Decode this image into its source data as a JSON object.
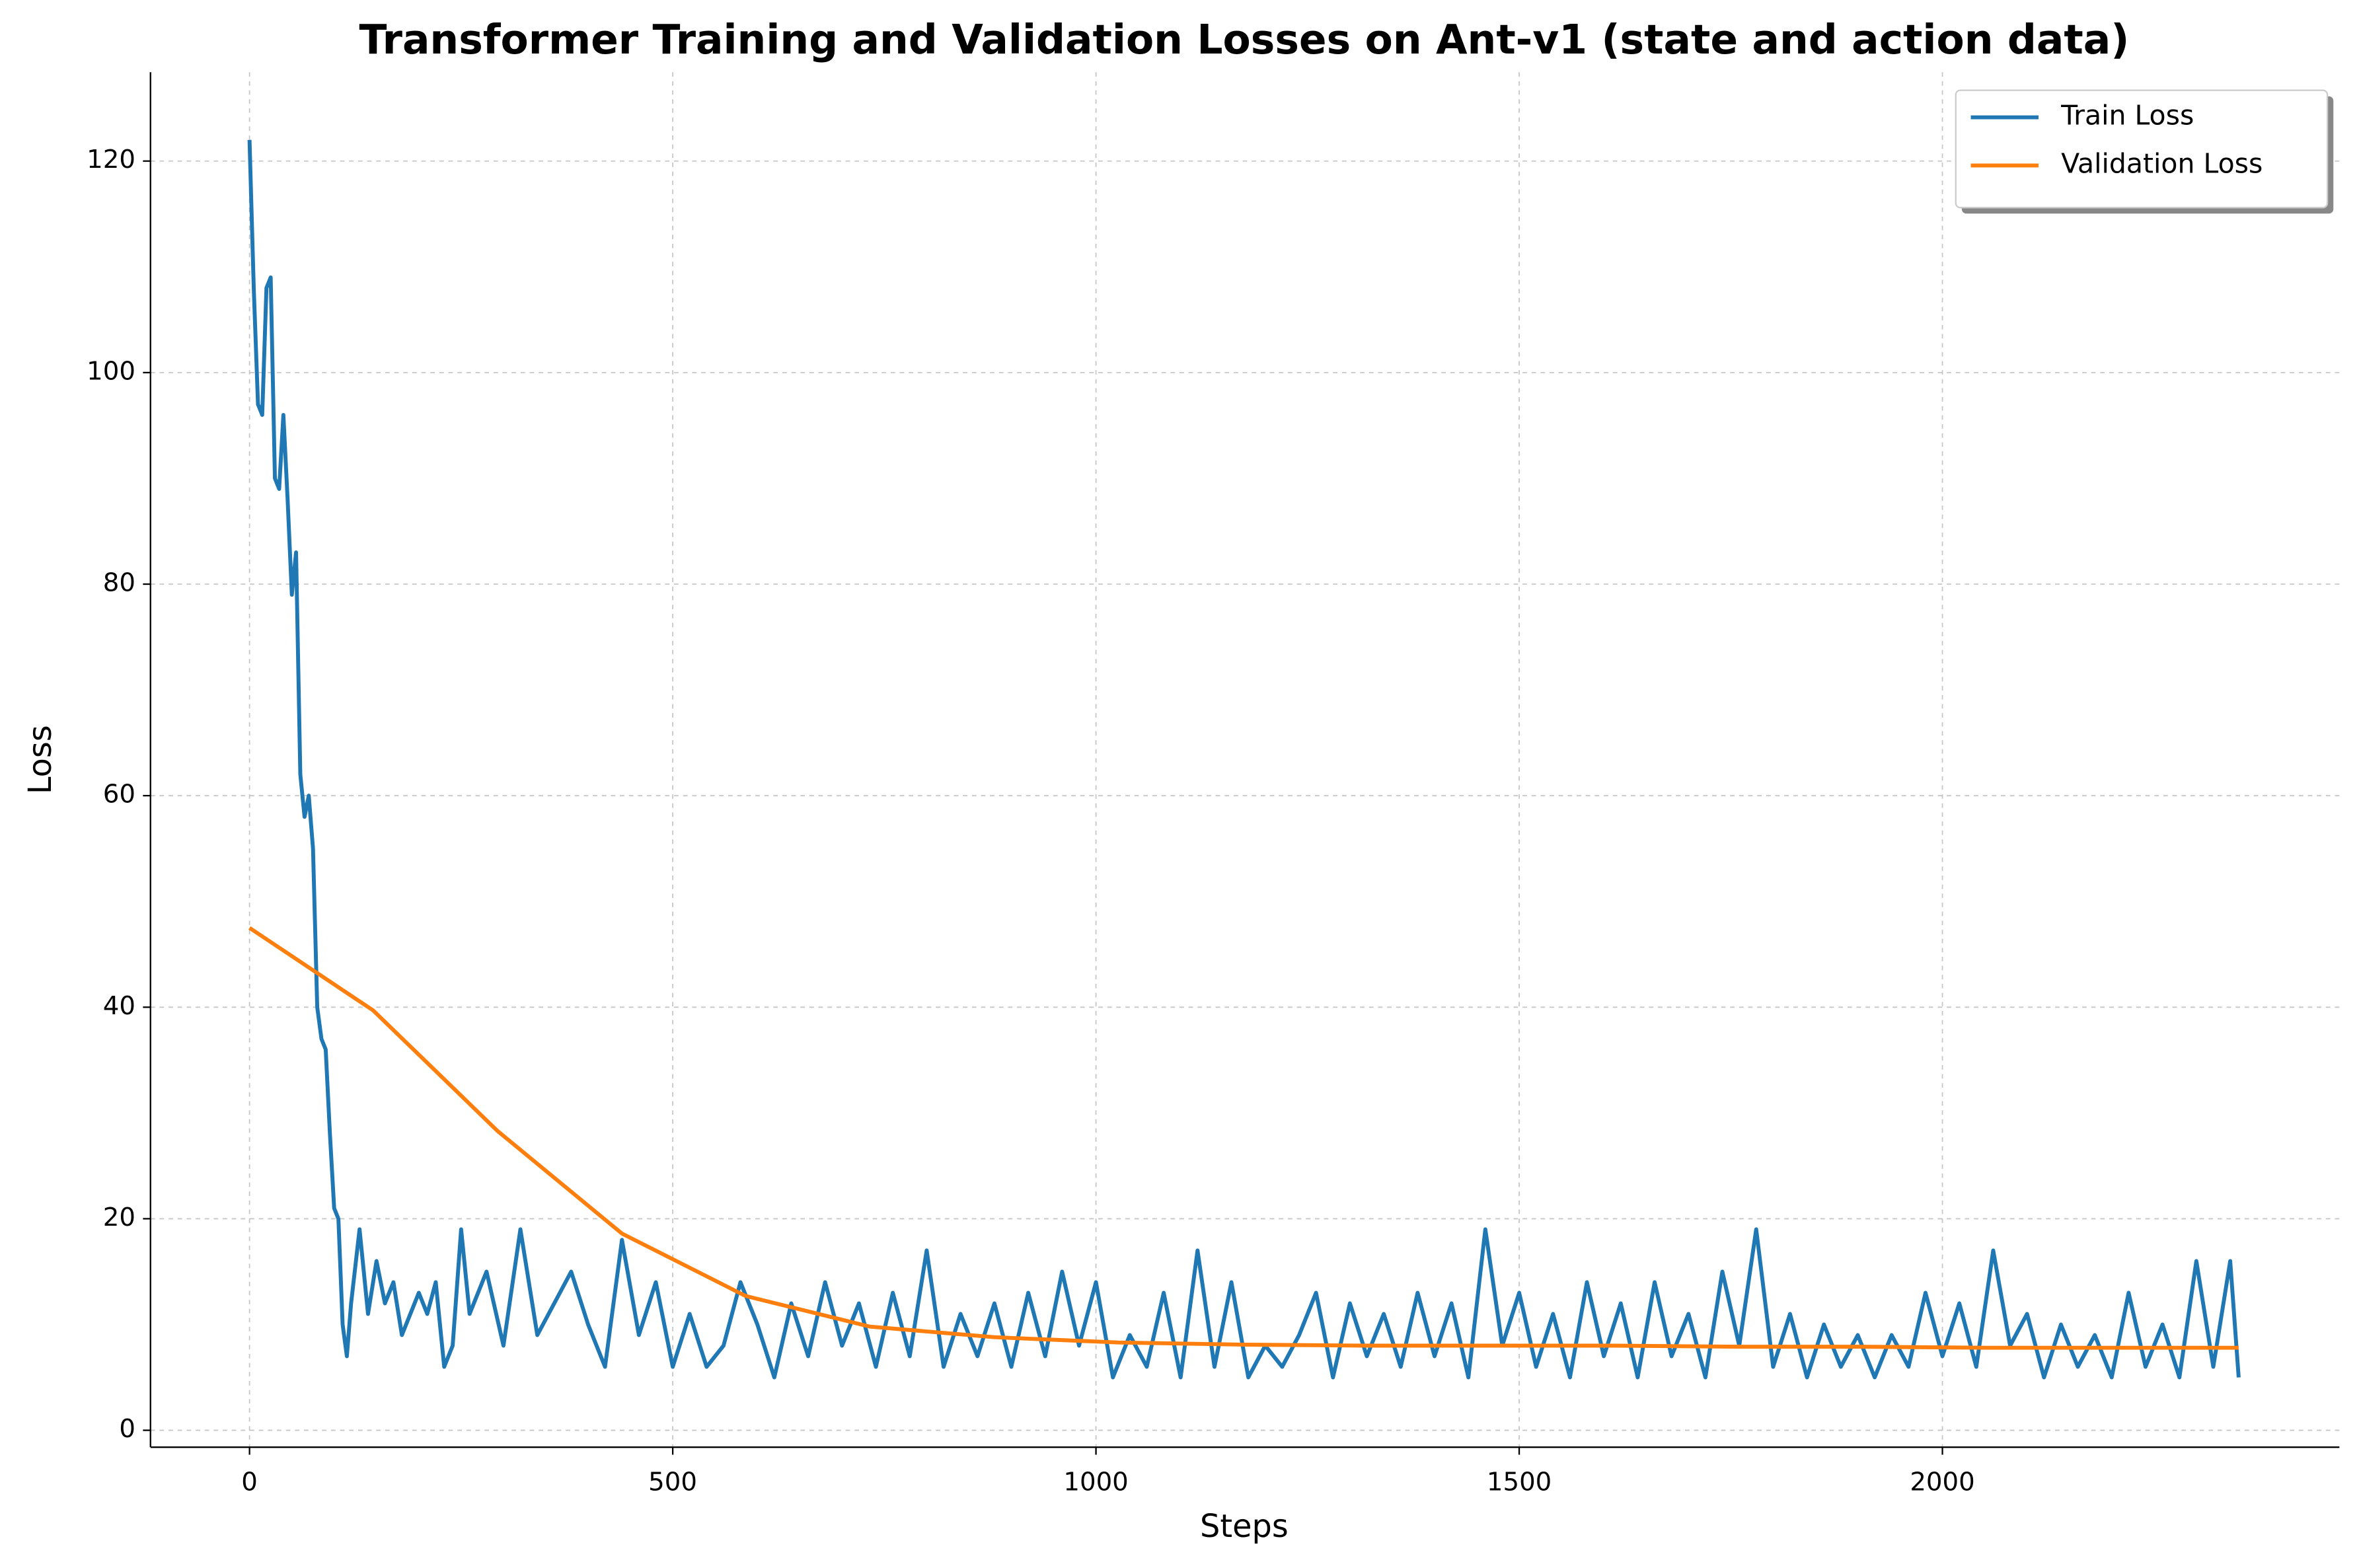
{
  "chart_data": {
    "type": "line",
    "title": "Transformer Training and Validation Losses on Ant-v1 (state and action data)",
    "x_label": "Steps",
    "y_label": "Loss",
    "xlim": [
      -117,
      2469
    ],
    "ylim": [
      -1.6,
      128.4
    ],
    "xticks": [
      0,
      500,
      1000,
      1500,
      2000
    ],
    "yticks": [
      0,
      20,
      40,
      60,
      80,
      100,
      120
    ],
    "grid": true,
    "legend": "upper right",
    "series": [
      {
        "name": "Train Loss",
        "color": "#1f77b4",
        "x": [
          0,
          5,
          10,
          15,
          20,
          25,
          30,
          35,
          40,
          45,
          50,
          55,
          60,
          65,
          70,
          75,
          80,
          85,
          90,
          95,
          100,
          105,
          110,
          115,
          120,
          130,
          140,
          150,
          160,
          170,
          180,
          190,
          200,
          210,
          220,
          230,
          240,
          250,
          260,
          280,
          300,
          320,
          340,
          360,
          380,
          400,
          420,
          440,
          460,
          480,
          500,
          520,
          540,
          560,
          580,
          600,
          620,
          640,
          660,
          680,
          700,
          720,
          740,
          760,
          780,
          800,
          820,
          840,
          860,
          880,
          900,
          920,
          940,
          960,
          980,
          1000,
          1020,
          1040,
          1060,
          1080,
          1100,
          1120,
          1140,
          1160,
          1180,
          1200,
          1220,
          1240,
          1260,
          1280,
          1300,
          1320,
          1340,
          1360,
          1380,
          1400,
          1420,
          1440,
          1460,
          1480,
          1500,
          1520,
          1540,
          1560,
          1580,
          1600,
          1620,
          1640,
          1660,
          1680,
          1700,
          1720,
          1740,
          1760,
          1780,
          1800,
          1820,
          1840,
          1860,
          1880,
          1900,
          1920,
          1940,
          1960,
          1980,
          2000,
          2020,
          2040,
          2060,
          2080,
          2100,
          2120,
          2140,
          2160,
          2180,
          2200,
          2220,
          2240,
          2260,
          2280,
          2300,
          2320,
          2340,
          2350
        ],
        "values": [
          122,
          108,
          97,
          96,
          108,
          109,
          90,
          89,
          96,
          88,
          79,
          83,
          62,
          58,
          60,
          55,
          40,
          37,
          36,
          28,
          21,
          20,
          10,
          7,
          12,
          19,
          11,
          16,
          12,
          14,
          9,
          11,
          13,
          11,
          14,
          6,
          8,
          19,
          11,
          15,
          8,
          19,
          9,
          12,
          15,
          10,
          6,
          18,
          9,
          14,
          6,
          11,
          6,
          8,
          14,
          10,
          5,
          12,
          7,
          14,
          8,
          12,
          6,
          13,
          7,
          17,
          6,
          11,
          7,
          12,
          6,
          13,
          7,
          15,
          8,
          14,
          5,
          9,
          6,
          13,
          5,
          17,
          6,
          14,
          5,
          8,
          6,
          9,
          13,
          5,
          12,
          7,
          11,
          6,
          13,
          7,
          12,
          5,
          19,
          8,
          13,
          6,
          11,
          5,
          14,
          7,
          12,
          5,
          14,
          7,
          11,
          5,
          15,
          8,
          19,
          6,
          11,
          5,
          10,
          6,
          9,
          5,
          9,
          6,
          13,
          7,
          12,
          6,
          17,
          8,
          11,
          5,
          10,
          6,
          9,
          5,
          13,
          6,
          10,
          5,
          16,
          6,
          16,
          5
        ]
      },
      {
        "name": "Validation Loss",
        "color": "#ff7f0e",
        "x": [
          0,
          146,
          293,
          440,
          586,
          733,
          880,
          1026,
          1173,
          1320,
          1466,
          1613,
          1760,
          1906,
          2053,
          2200,
          2350
        ],
        "values": [
          47.5,
          39.7,
          28.3,
          18.6,
          12.7,
          9.8,
          8.8,
          8.3,
          8.1,
          8.0,
          8.0,
          8.0,
          7.9,
          7.9,
          7.8,
          7.8,
          7.8
        ]
      }
    ]
  }
}
